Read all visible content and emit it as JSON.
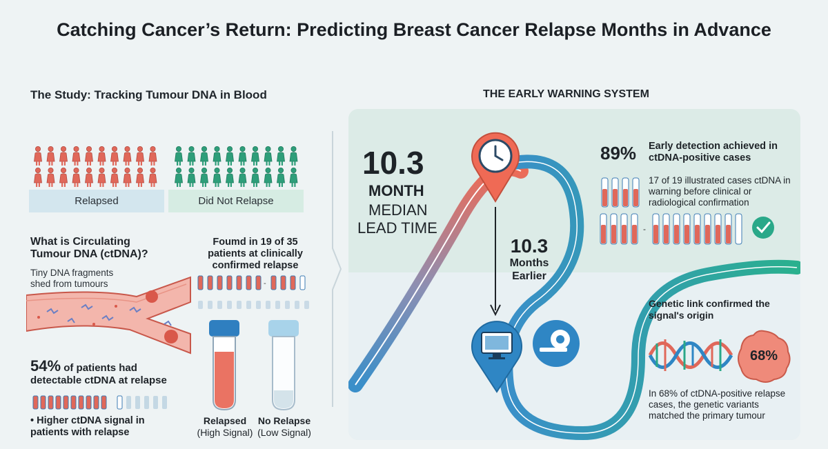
{
  "title": "Catching Cancer’s Return: Predicting Breast Cancer Relapse Months in Advance",
  "study": {
    "heading": "The Study: Tracking Tumour DNA in Blood",
    "group_relapsed": "Relapsed",
    "group_not_relapsed": "Did Not Relapse",
    "ctdna_heading": "What is Circulating Tumour DNA (ctDNA)?",
    "ctdna_caption": "Tiny DNA fragments shed from tumours",
    "found_text": "Foumd in 19 of 35 patients at clinically confirmed relapse",
    "stat_percent": "54%",
    "stat_text": "of patients had detectable ctDNA at relapse",
    "bullet": "• Higher ctDNA signal in patients with relapse",
    "tube_relapsed_label": "Relapsed",
    "tube_relapsed_sub": "(High Signal)",
    "tube_norelapse_label": "No Relapse",
    "tube_norelapse_sub": "(Low Signal)"
  },
  "warning": {
    "heading": "THE EARLY WARNING SYSTEM",
    "big_number": "10.3",
    "month": "MONTH",
    "median": "MEDIAN",
    "lead_time": "LEAD TIME",
    "arrow_number": "10.3",
    "arrow_months": "Months",
    "arrow_earlier": "Earlier",
    "pct89": "89%",
    "pct89_text": "Early detection achieved in ctDNA-positive cases",
    "cases_text": "17 of 19 illustrated cases ctDNA in warning before clinical or radiological confirmation",
    "genetic_heading": "Genetic link confirmed the signal's origin",
    "pct68": "68%",
    "genetic_text": "In 68% of ctDNA-positive relapse cases, the genetic variants matched the primary tumour"
  },
  "colors": {
    "relapsed": "#e0685a",
    "not_relapsed": "#2e9e7a",
    "blue": "#2f86c4",
    "teal": "#2aa889"
  }
}
